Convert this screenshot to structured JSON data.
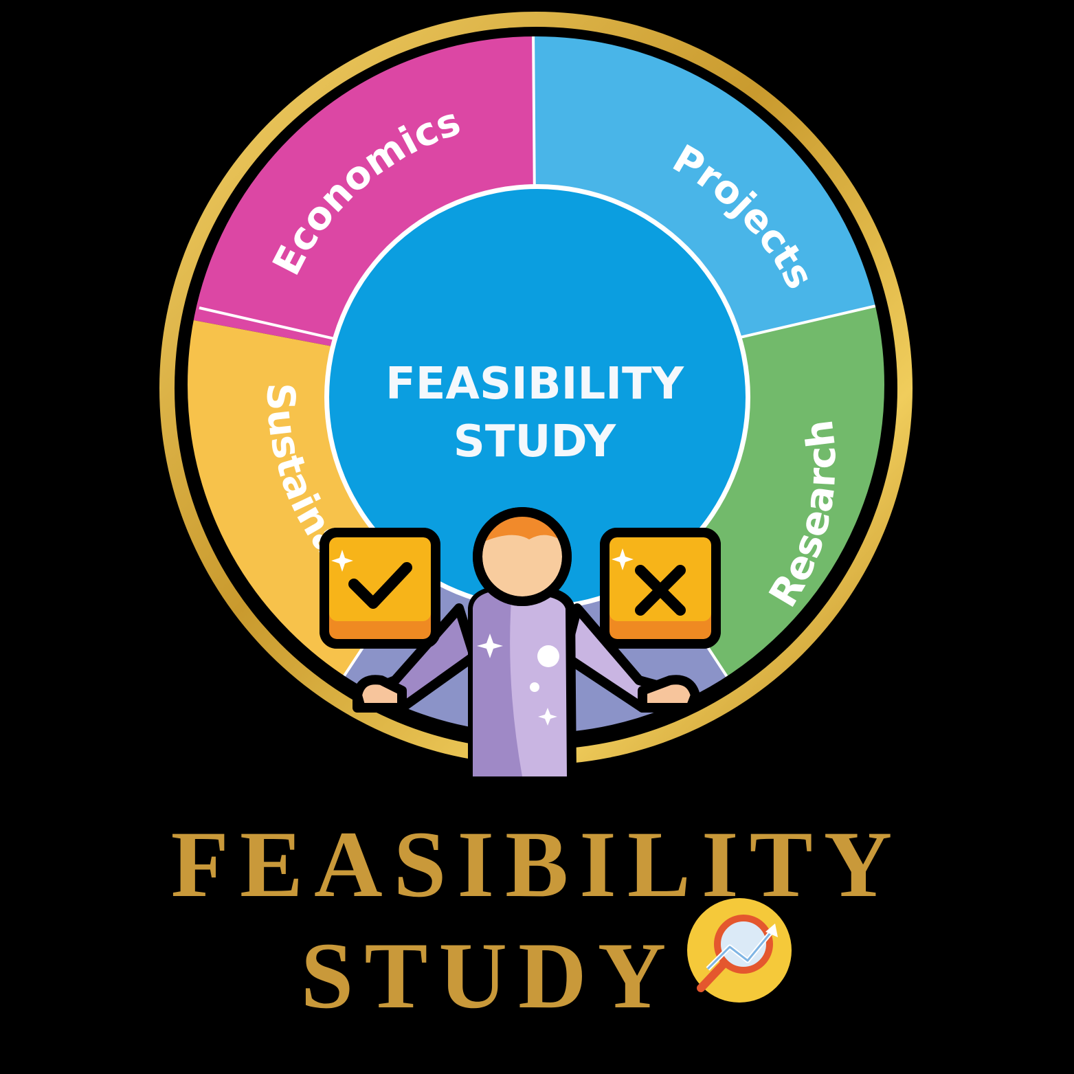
{
  "wheel": {
    "center_label": [
      "FEASIBILITY",
      "STUDY"
    ],
    "segments": [
      {
        "label": "Economics",
        "color": "#dc47a4"
      },
      {
        "label": "Projects",
        "color": "#49b5e8"
      },
      {
        "label": "Research",
        "color": "#72ba6b"
      },
      {
        "label": "Sustainability",
        "color": "#f7c24b"
      },
      {
        "label": "",
        "color": "#8b93c8"
      }
    ],
    "hub_color": "#0b9ee0",
    "ring_color": "#d9ad3c"
  },
  "figure": {
    "approve_icon": "check-icon",
    "reject_icon": "cross-icon",
    "box_color": "#f7b419",
    "box_shade": "#ef8a22"
  },
  "title": {
    "line1": "FEASIBILITY",
    "line2": "STUDY",
    "badge_icon": "magnifier-chart-icon"
  }
}
